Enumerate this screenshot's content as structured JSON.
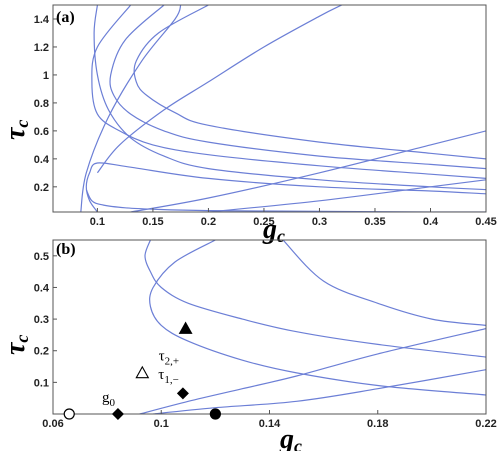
{
  "chart_data": [
    {
      "type": "line",
      "panel_label": "(a)",
      "xlabel": "g",
      "xlabel_sub": "c",
      "ylabel": "τ",
      "ylabel_sub": "c",
      "xlim": [
        0.06,
        0.45
      ],
      "ylim": [
        0.02,
        1.5
      ],
      "xticks": [
        "0.1",
        "0.15",
        "0.2",
        "0.25",
        "0.3",
        "0.35",
        "0.4",
        "0.45"
      ],
      "xtick_values": [
        0.1,
        0.15,
        0.2,
        0.25,
        0.3,
        0.35,
        0.4,
        0.45
      ],
      "yticks": [
        "0.2",
        "0.4",
        "0.6",
        "0.8",
        "1",
        "1.2",
        "1.4"
      ],
      "ytick_values": [
        0.2,
        0.4,
        0.6,
        0.8,
        1.0,
        1.2,
        1.4
      ],
      "series": [
        {
          "kind": "c",
          "x": [
            0.09,
            0.095,
            0.105,
            0.125,
            0.15,
            0.2,
            0.3,
            0.4,
            0.45
          ],
          "y": [
            0.18,
            0.1,
            0.07,
            0.05,
            0.04,
            0.03,
            0.025,
            0.02,
            0.02
          ]
        },
        {
          "kind": "c",
          "x": [
            0.1,
            0.097,
            0.1,
            0.11,
            0.13,
            0.16,
            0.2,
            0.3,
            0.4,
            0.45
          ],
          "y": [
            1.5,
            1.3,
            1.0,
            0.75,
            0.55,
            0.42,
            0.33,
            0.25,
            0.2,
            0.18
          ]
        },
        {
          "kind": "c",
          "x": [
            0.1,
            0.093,
            0.09,
            0.093,
            0.1,
            0.13,
            0.2,
            0.3,
            0.4,
            0.45
          ],
          "y": [
            0.02,
            0.1,
            0.2,
            0.3,
            0.37,
            0.34,
            0.26,
            0.2,
            0.17,
            0.15
          ]
        },
        {
          "kind": "c",
          "x": [
            0.13,
            0.1,
            0.095,
            0.1,
            0.12,
            0.15,
            0.2,
            0.3,
            0.4,
            0.45
          ],
          "y": [
            1.5,
            1.2,
            0.95,
            0.72,
            0.6,
            0.5,
            0.43,
            0.35,
            0.29,
            0.26
          ]
        },
        {
          "kind": "c",
          "x": [
            0.16,
            0.125,
            0.112,
            0.115,
            0.13,
            0.16,
            0.2,
            0.3,
            0.4,
            0.45
          ],
          "y": [
            1.5,
            1.25,
            1.0,
            0.85,
            0.72,
            0.6,
            0.52,
            0.42,
            0.36,
            0.33
          ]
        },
        {
          "kind": "c",
          "x": [
            0.2,
            0.155,
            0.135,
            0.135,
            0.145,
            0.17,
            0.2,
            0.3,
            0.4,
            0.45
          ],
          "y": [
            1.5,
            1.3,
            1.1,
            0.95,
            0.85,
            0.73,
            0.64,
            0.52,
            0.44,
            0.4
          ]
        },
        {
          "kind": "c",
          "x": [
            0.085,
            0.09,
            0.11,
            0.14,
            0.17,
            0.175
          ],
          "y": [
            0.02,
            0.3,
            0.7,
            1.1,
            1.4,
            1.5
          ]
        },
        {
          "kind": "c",
          "x": [
            0.1,
            0.12,
            0.16,
            0.2,
            0.25,
            0.3,
            0.32
          ],
          "y": [
            0.3,
            0.5,
            0.75,
            0.95,
            1.2,
            1.42,
            1.5
          ]
        },
        {
          "kind": "c",
          "x": [
            0.13,
            0.2,
            0.3,
            0.4,
            0.45
          ],
          "y": [
            0.02,
            0.12,
            0.3,
            0.5,
            0.6
          ]
        },
        {
          "kind": "c",
          "x": [
            0.2,
            0.3,
            0.4,
            0.45
          ],
          "y": [
            0.02,
            0.1,
            0.2,
            0.25
          ]
        }
      ]
    },
    {
      "type": "scatter",
      "panel_label": "(b)",
      "xlabel": "g",
      "xlabel_sub": "c",
      "ylabel": "τ",
      "ylabel_sub": "c",
      "xlim": [
        0.06,
        0.22
      ],
      "ylim": [
        0.0,
        0.55
      ],
      "xticks": [
        "0.06",
        "0.1",
        "0.14",
        "0.18",
        "0.22"
      ],
      "xtick_values": [
        0.06,
        0.1,
        0.14,
        0.18,
        0.22
      ],
      "yticks": [
        "0.1",
        "0.2",
        "0.3",
        "0.4",
        "0.5"
      ],
      "ytick_values": [
        0.1,
        0.2,
        0.3,
        0.4,
        0.5
      ],
      "series": [
        {
          "kind": "c",
          "x": [
            0.12,
            0.105,
            0.097,
            0.096,
            0.1,
            0.11,
            0.13,
            0.15,
            0.18,
            0.22
          ],
          "y": [
            0.55,
            0.48,
            0.4,
            0.34,
            0.28,
            0.23,
            0.17,
            0.13,
            0.09,
            0.06
          ]
        },
        {
          "kind": "c",
          "x": [
            0.096,
            0.094,
            0.096,
            0.1,
            0.11,
            0.13,
            0.15,
            0.18,
            0.22
          ],
          "y": [
            0.55,
            0.5,
            0.45,
            0.4,
            0.35,
            0.3,
            0.26,
            0.22,
            0.18
          ]
        },
        {
          "kind": "c",
          "x": [
            0.145,
            0.16,
            0.18,
            0.2,
            0.22
          ],
          "y": [
            0.55,
            0.42,
            0.35,
            0.3,
            0.28
          ]
        },
        {
          "kind": "c",
          "x": [
            0.092,
            0.11,
            0.13,
            0.15,
            0.18,
            0.22
          ],
          "y": [
            0.0,
            0.04,
            0.08,
            0.12,
            0.19,
            0.27
          ]
        },
        {
          "kind": "c",
          "x": [
            0.097,
            0.12,
            0.15,
            0.18,
            0.22
          ],
          "y": [
            0.0,
            0.02,
            0.04,
            0.08,
            0.14
          ]
        }
      ],
      "markers": [
        {
          "shape": "circle-open",
          "x": 0.066,
          "y": 0.0
        },
        {
          "shape": "diamond-filled",
          "x": 0.084,
          "y": 0.0,
          "label": "g",
          "label_sub": "0"
        },
        {
          "shape": "circle-filled",
          "x": 0.12,
          "y": 0.0
        },
        {
          "shape": "diamond-filled",
          "x": 0.108,
          "y": 0.065
        },
        {
          "shape": "triangle-open",
          "x": 0.093,
          "y": 0.13,
          "label": "τ",
          "label_sub": "1,−"
        },
        {
          "shape": "triangle-filled",
          "x": 0.109,
          "y": 0.27,
          "label": "τ",
          "label_sub": "2,+"
        }
      ]
    }
  ],
  "colors": {
    "curve": "#6c7fd6",
    "marker": "#000000"
  }
}
